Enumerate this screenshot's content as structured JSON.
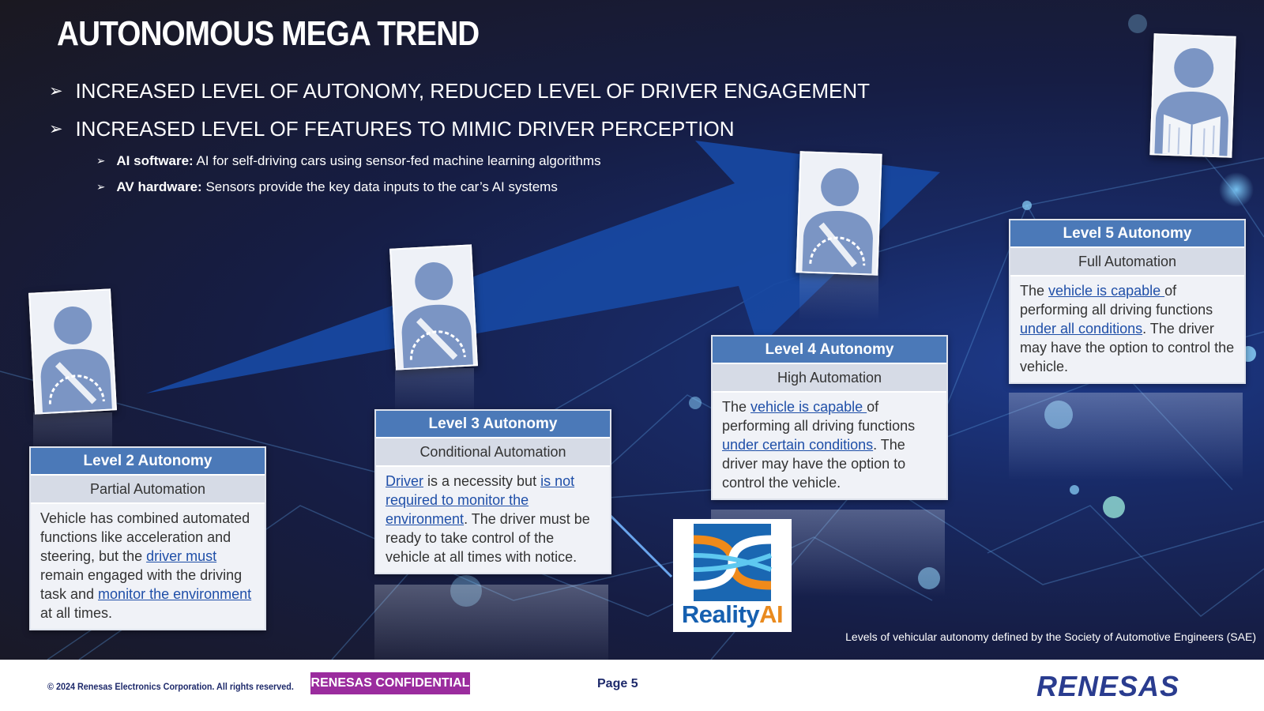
{
  "slide": {
    "title": "AUTONOMOUS MEGA TREND",
    "bullets": [
      "INCREASED LEVEL OF AUTONOMY, REDUCED LEVEL OF DRIVER ENGAGEMENT",
      "INCREASED LEVEL OF FEATURES TO MIMIC DRIVER PERCEPTION"
    ],
    "sub_bullets": [
      {
        "bold": "AI software:",
        "text": " AI for self-driving cars using sensor-fed machine learning algorithms"
      },
      {
        "bold": "AV hardware:",
        "text": " Sensors provide the key data inputs to the car’s AI systems"
      }
    ],
    "arrow_glyph": "➢",
    "levels": [
      {
        "title": "Level 2 Autonomy",
        "subtitle": "Partial Automation",
        "body": {
          "t1": "Vehicle has combined automated functions like acceleration and steering, but the ",
          "l1": "driver must ",
          "t2": "remain engaged with the driving task and ",
          "l2": "monitor the environment",
          "t3": " at all times."
        }
      },
      {
        "title": "Level 3 Autonomy",
        "subtitle": "Conditional Automation",
        "body": {
          "l1": "Driver",
          "t1": " is a necessity but ",
          "l2": "is not required to monitor the environment",
          "t2": ". The driver must be ready to take control of the vehicle at all times with notice."
        }
      },
      {
        "title": "Level 4 Autonomy",
        "subtitle": "High Automation",
        "body": {
          "t1": "The ",
          "l1": "vehicle is capable ",
          "t2": "of performing all driving functions ",
          "l2": "under certain conditions",
          "t3": ". The driver may have the option to control the vehicle."
        }
      },
      {
        "title": "Level 5 Autonomy",
        "subtitle": "Full Automation",
        "body": {
          "t1": "The ",
          "l1": "vehicle is capable ",
          "t2": "of performing all driving functions ",
          "l2": "under all conditions",
          "t3": ". The driver may have the option to control the vehicle."
        }
      }
    ],
    "logo": {
      "word1": "Reality",
      "word2": "AI"
    },
    "caption": "Levels of vehicular autonomy defined by the Society of Automotive Engineers (SAE)"
  },
  "footer": {
    "copyright": "© 2024 Renesas Electronics Corporation. All rights reserved.",
    "confidential": "RENESAS CONFIDENTIAL",
    "page": "Page 5",
    "brand": "RENESAS"
  },
  "colors": {
    "card_header": "#4b79b8",
    "link": "#1f4fa8",
    "confidential_bg": "#9b2c9e",
    "brand": "#2a3c8f",
    "logo_blue": "#1660b0",
    "logo_orange": "#e98a1e"
  },
  "icons": [
    "bullet-arrow-icon",
    "driver-hands-on-wheel-icon",
    "driver-reading-icon",
    "reality-ai-logo",
    "renesas-logo"
  ]
}
